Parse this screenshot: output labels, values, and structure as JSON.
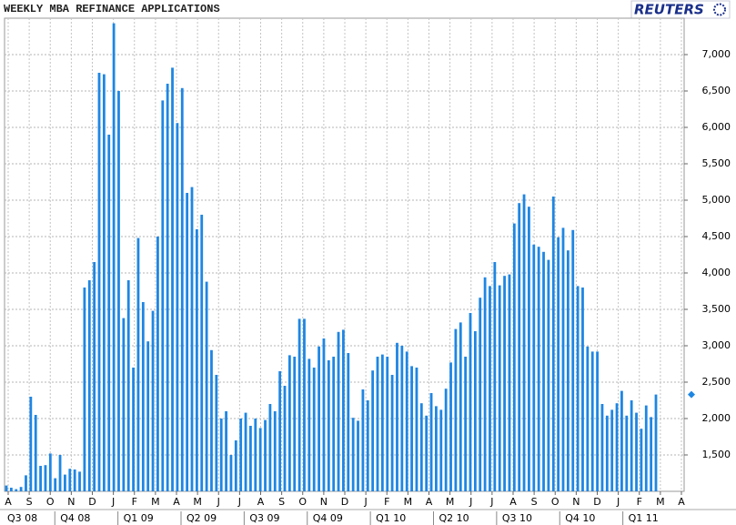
{
  "chart_data": {
    "type": "bar",
    "title": "WEEKLY MBA REFINANCE APPLICATIONS",
    "source": "REUTERS",
    "color": "#1e86e3",
    "values": [
      1080,
      1050,
      1030,
      1060,
      1220,
      2300,
      2050,
      1350,
      1360,
      1520,
      1180,
      1500,
      1230,
      1310,
      1300,
      1270,
      3800,
      3900,
      4150,
      6750,
      6730,
      5900,
      7430,
      6500,
      3380,
      3900,
      2700,
      4480,
      3600,
      3060,
      3480,
      4500,
      6370,
      6600,
      6820,
      6060,
      6540,
      5100,
      5180,
      4600,
      4800,
      3880,
      2940,
      2600,
      2000,
      2100,
      1500,
      1700,
      2000,
      2080,
      1900,
      2000,
      1870,
      1980,
      2200,
      2100,
      2650,
      2450,
      2870,
      2850,
      3370,
      3370,
      2820,
      2700,
      2990,
      3100,
      2800,
      2850,
      3190,
      3220,
      2900,
      2010,
      1970,
      2400,
      2250,
      2660,
      2850,
      2880,
      2850,
      2600,
      3040,
      3000,
      2920,
      2720,
      2700,
      2210,
      2040,
      2350,
      2170,
      2120,
      2410,
      2770,
      3230,
      3320,
      2850,
      3450,
      3200,
      3660,
      3940,
      3820,
      4150,
      3830,
      3960,
      3980,
      4680,
      4960,
      5080,
      4910,
      4390,
      4360,
      4290,
      4180,
      5050,
      4490,
      4620,
      4310,
      4590,
      3820,
      3800,
      2990,
      2920,
      2920,
      2200,
      2040,
      2120,
      2210,
      2380,
      2040,
      2250,
      2080,
      1860,
      2180,
      2020,
      2330
    ],
    "last_value": 2330,
    "months": [
      "A",
      "S",
      "O",
      "N",
      "D",
      "J",
      "F",
      "M",
      "A",
      "M",
      "J",
      "J",
      "A",
      "S",
      "O",
      "N",
      "D",
      "J",
      "F",
      "M",
      "A",
      "M",
      "J",
      "J",
      "A",
      "S",
      "O",
      "N",
      "D",
      "J",
      "F",
      "M",
      "A"
    ],
    "quarters": [
      "Q3 08",
      "Q4 08",
      "Q1 09",
      "Q2 09",
      "Q3 09",
      "Q4 09",
      "Q1 10",
      "Q2 10",
      "Q3 10",
      "Q4 10",
      "Q1 11"
    ],
    "ylim": [
      1000,
      7500
    ],
    "yticks": [
      {
        "value": 1500,
        "label": "1,500"
      },
      {
        "value": 2000,
        "label": "2,000"
      },
      {
        "value": 2500,
        "label": "2,500"
      },
      {
        "value": 3000,
        "label": "3,000"
      },
      {
        "value": 3500,
        "label": "3,500"
      },
      {
        "value": 4000,
        "label": "4,000"
      },
      {
        "value": 4500,
        "label": "4,500"
      },
      {
        "value": 5000,
        "label": "5,000"
      },
      {
        "value": 5500,
        "label": "5,500"
      },
      {
        "value": 6000,
        "label": "6,000"
      },
      {
        "value": 6500,
        "label": "6,500"
      },
      {
        "value": 7000,
        "label": "7,000"
      }
    ],
    "grid": true
  }
}
